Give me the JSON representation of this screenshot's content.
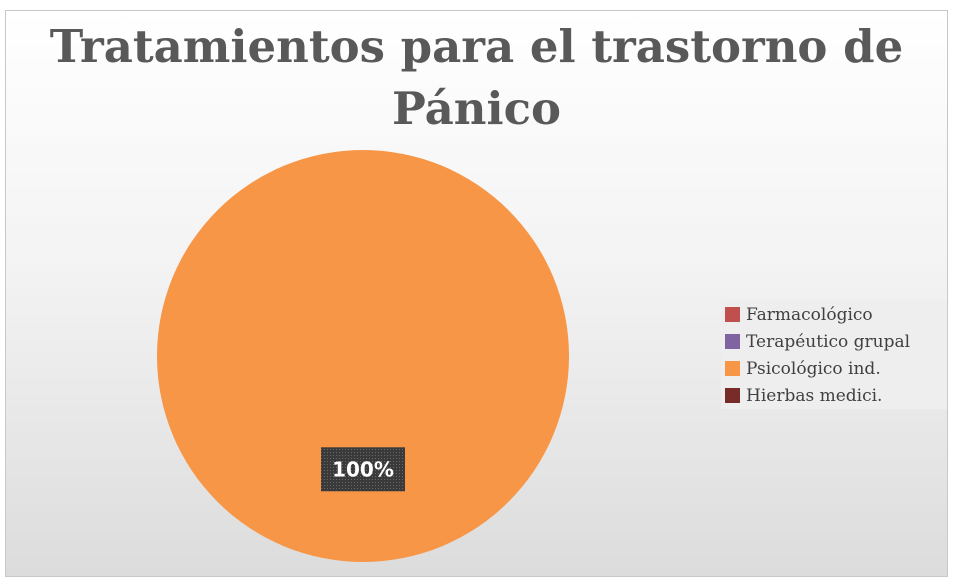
{
  "chart_data": {
    "type": "pie",
    "title": "Tratamientos para el trastorno de Pánico",
    "categories": [
      "Farmacológico",
      "Terapéutico grupal",
      "Psicológico ind.",
      "Hierbas medici."
    ],
    "values": [
      0,
      0,
      100,
      0
    ],
    "data_labels": [
      "",
      "",
      "100%",
      ""
    ],
    "colors": [
      "#c0504d",
      "#8064a2",
      "#f79646",
      "#772c2a"
    ],
    "legend_position": "right",
    "background_gradient": [
      "#ffffff",
      "#dcdcdc"
    ]
  }
}
